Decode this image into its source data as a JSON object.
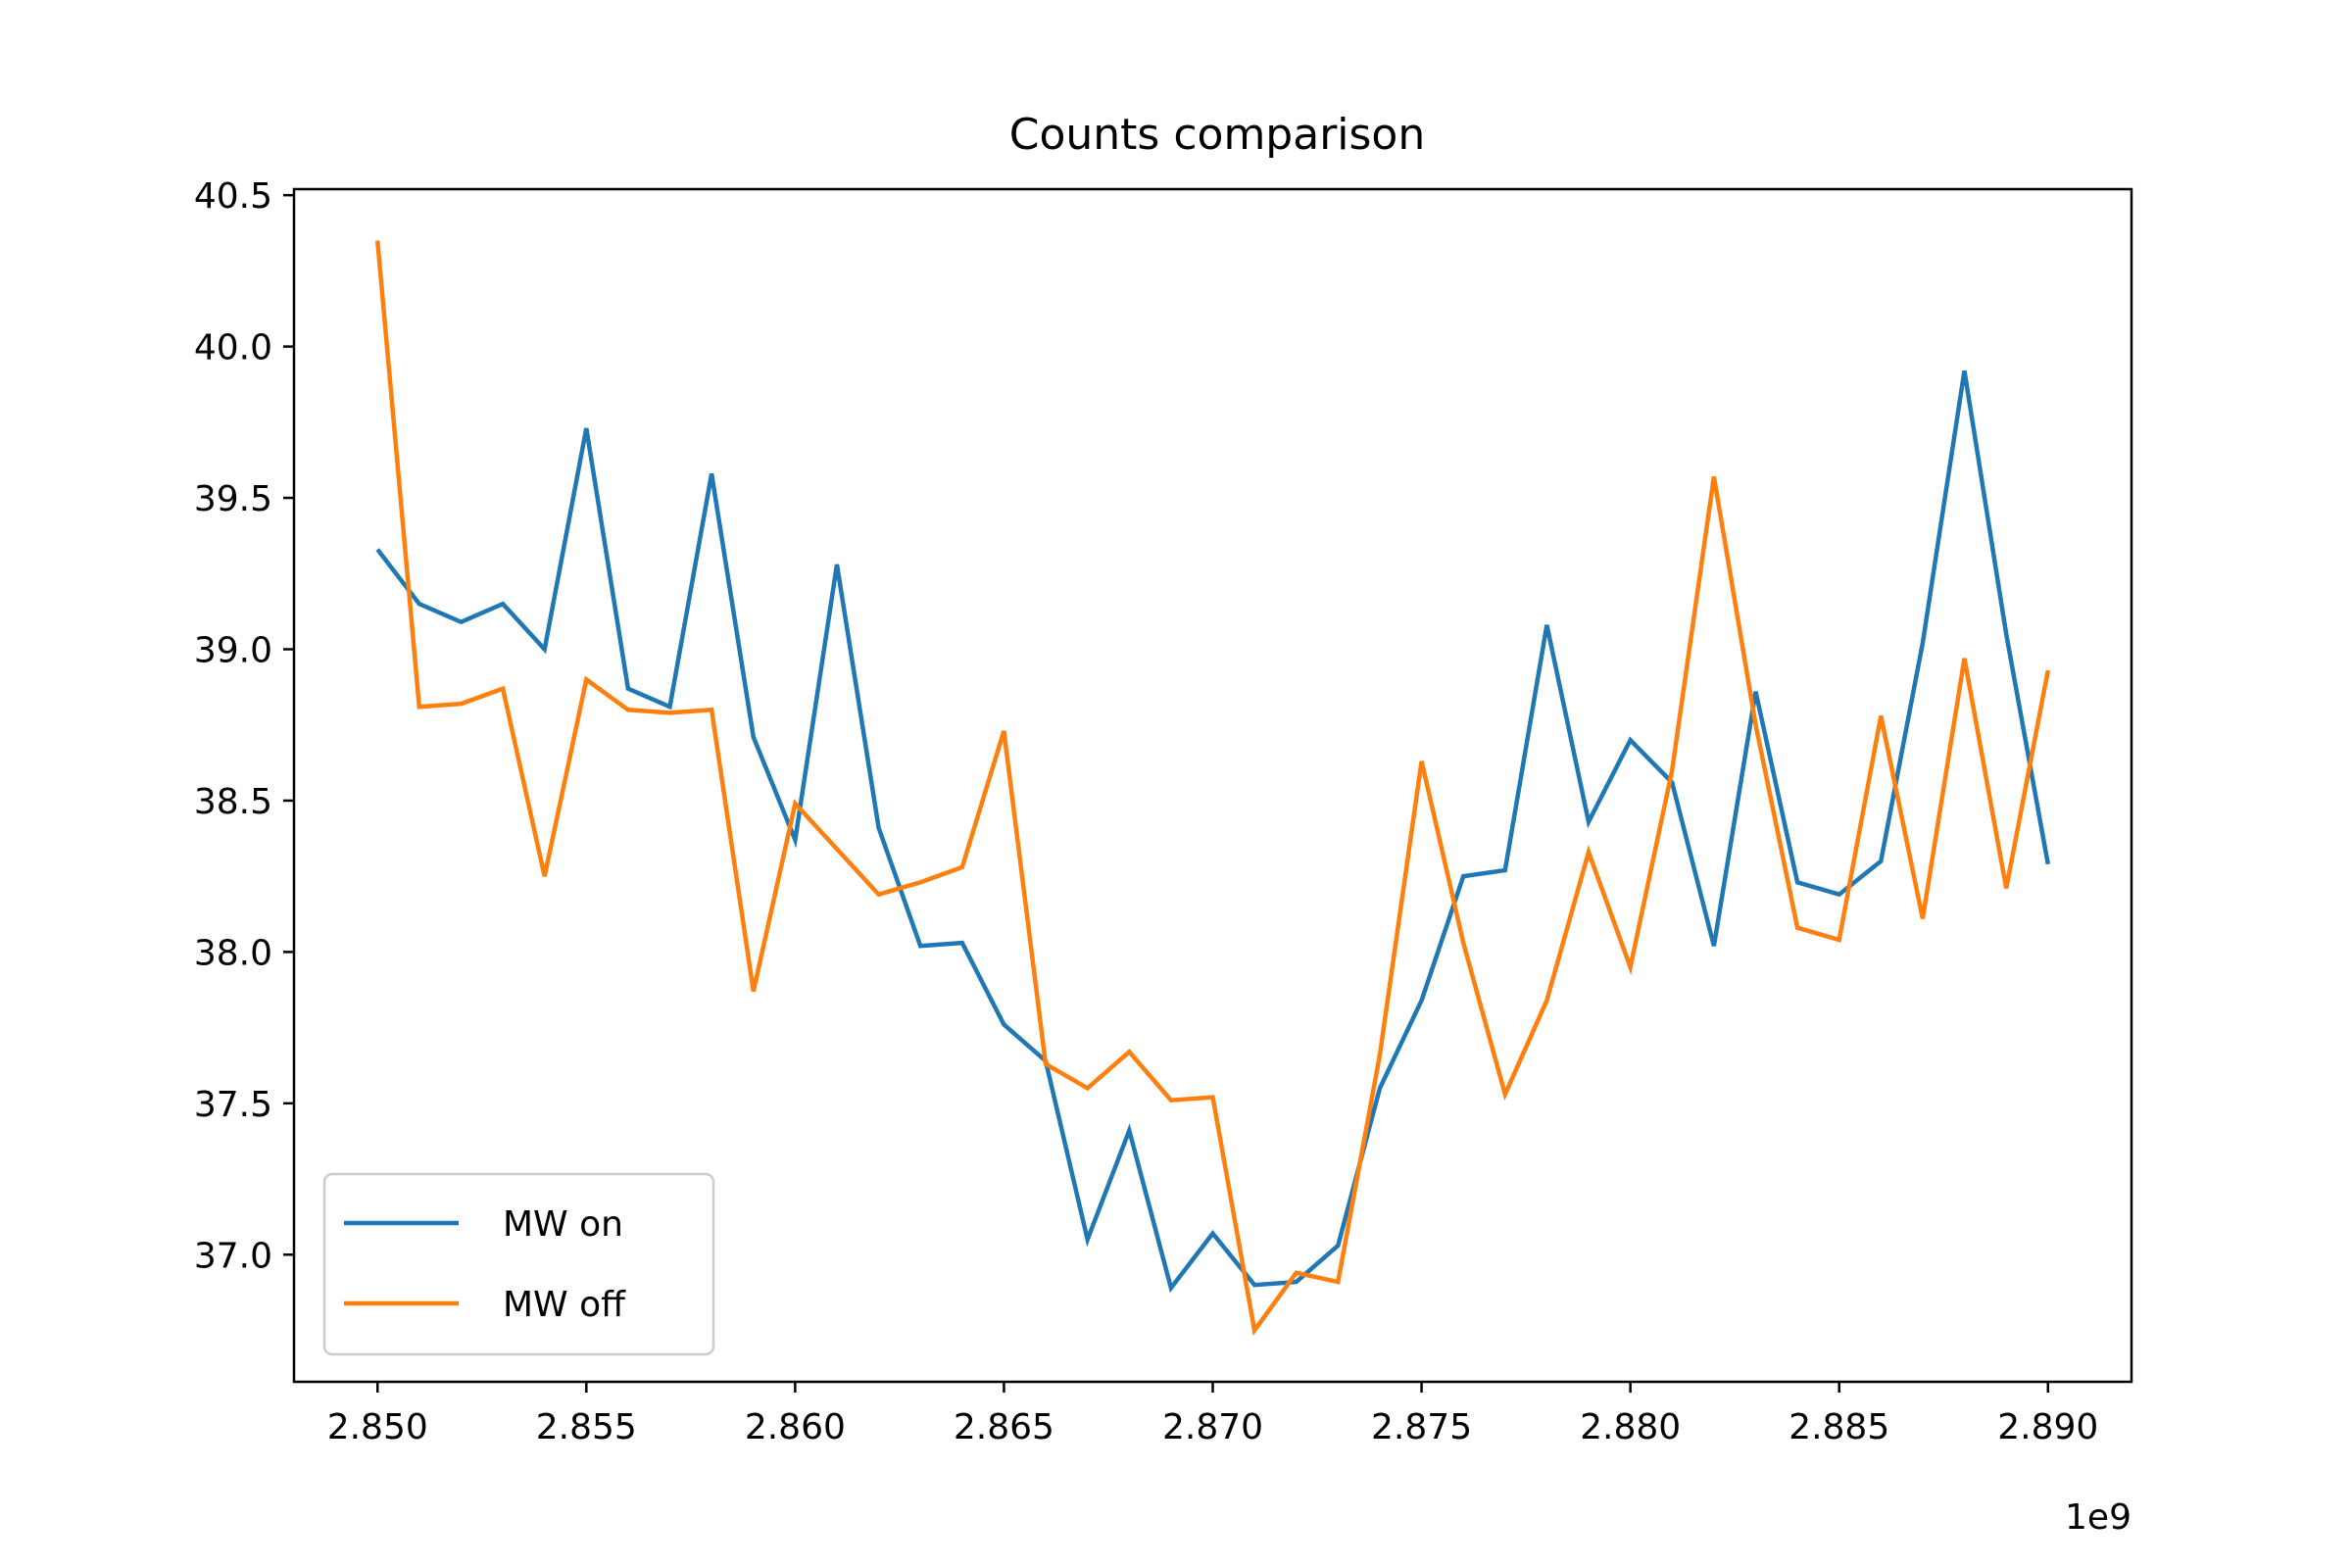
{
  "chart_data": {
    "type": "line",
    "title": "Counts comparison",
    "xlabel": "",
    "ylabel": "",
    "x_offset_label": "1e9",
    "xlim": [
      2.848,
      2.892
    ],
    "ylim": [
      36.58,
      40.52
    ],
    "x_ticks": [
      2.85,
      2.855,
      2.86,
      2.865,
      2.87,
      2.875,
      2.88,
      2.885,
      2.89
    ],
    "x_tick_labels": [
      "2.850",
      "2.855",
      "2.860",
      "2.865",
      "2.870",
      "2.875",
      "2.880",
      "2.885",
      "2.890"
    ],
    "y_ticks": [
      37.0,
      37.5,
      38.0,
      38.5,
      39.0,
      39.5,
      40.0,
      40.5
    ],
    "y_tick_labels": [
      "37.0",
      "37.5",
      "38.0",
      "38.5",
      "39.0",
      "39.5",
      "40.0",
      "40.5"
    ],
    "grid": false,
    "legend_position": "lower-left",
    "x": [
      2.85,
      2.851,
      2.852,
      2.853,
      2.854,
      2.855,
      2.856,
      2.857,
      2.858,
      2.859,
      2.86,
      2.861,
      2.862,
      2.863,
      2.864,
      2.865,
      2.866,
      2.867,
      2.868,
      2.869,
      2.87,
      2.871,
      2.872,
      2.873,
      2.874,
      2.875,
      2.876,
      2.877,
      2.878,
      2.879,
      2.88,
      2.881,
      2.882,
      2.883,
      2.884,
      2.885,
      2.886,
      2.887,
      2.888,
      2.889,
      2.89
    ],
    "series": [
      {
        "name": "MW on",
        "color": "#1f77b4",
        "values": [
          39.33,
          39.15,
          39.09,
          39.15,
          39.0,
          39.73,
          38.87,
          38.81,
          39.58,
          38.71,
          38.37,
          39.28,
          38.41,
          38.02,
          38.03,
          37.76,
          37.64,
          37.05,
          37.41,
          36.89,
          37.07,
          36.9,
          36.91,
          37.03,
          37.55,
          37.84,
          38.25,
          38.27,
          39.08,
          38.43,
          38.7,
          38.56,
          38.02,
          38.86,
          38.23,
          38.19,
          38.3,
          39.02,
          39.92,
          39.05,
          38.29
        ]
      },
      {
        "name": "MW off",
        "color": "#ff7f0e",
        "values": [
          40.35,
          38.81,
          38.82,
          38.87,
          38.25,
          38.9,
          38.8,
          38.79,
          38.8,
          37.87,
          38.49,
          38.34,
          38.19,
          38.23,
          38.28,
          38.73,
          37.63,
          37.55,
          37.67,
          37.51,
          37.52,
          36.75,
          36.94,
          36.91,
          37.66,
          38.63,
          38.03,
          37.53,
          37.84,
          38.33,
          37.95,
          38.6,
          39.57,
          38.75,
          38.08,
          38.04,
          38.78,
          38.11,
          38.97,
          38.21,
          38.93
        ]
      }
    ]
  }
}
